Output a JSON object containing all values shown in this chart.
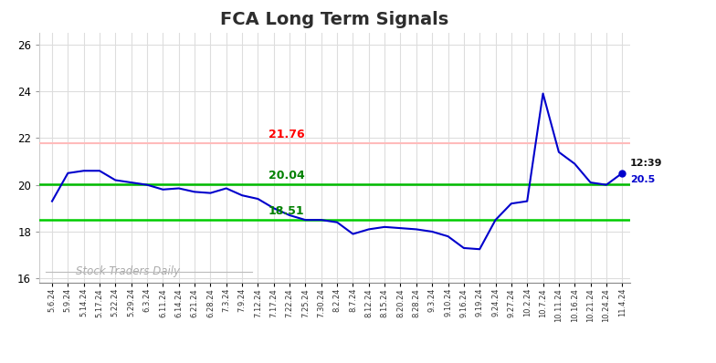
{
  "title": "FCA Long Term Signals",
  "title_fontsize": 14,
  "title_color": "#2d2d2d",
  "background_color": "#ffffff",
  "line_color": "#0000cc",
  "line_width": 1.5,
  "hline_red_value": 21.76,
  "hline_green_mid_value": 20.04,
  "hline_green_low_value": 18.51,
  "hline_red_color": "#ffbbbb",
  "hline_green_mid_color": "#00bb00",
  "hline_green_low_color": "#00cc00",
  "hline_red_label": "21.76",
  "hline_green_mid_label": "20.04",
  "hline_green_low_label": "18.51",
  "annotation_time": "12:39",
  "annotation_value": "20.5",
  "annotation_time_color": "#111111",
  "annotation_value_color": "#0000cc",
  "watermark_text": "Stock Traders Daily",
  "watermark_color": "#aaaaaa",
  "ylim": [
    15.8,
    26.5
  ],
  "yticks": [
    16,
    18,
    20,
    22,
    24,
    26
  ],
  "grid_color": "#dddddd",
  "x_labels": [
    "5.6.24",
    "5.9.24",
    "5.14.24",
    "5.17.24",
    "5.22.24",
    "5.29.24",
    "6.3.24",
    "6.11.24",
    "6.14.24",
    "6.21.24",
    "6.28.24",
    "7.3.24",
    "7.9.24",
    "7.12.24",
    "7.17.24",
    "7.22.24",
    "7.25.24",
    "7.30.24",
    "8.2.24",
    "8.7.24",
    "8.12.24",
    "8.15.24",
    "8.20.24",
    "8.28.24",
    "9.3.24",
    "9.10.24",
    "9.16.24",
    "9.19.24",
    "9.24.24",
    "9.27.24",
    "10.2.24",
    "10.7.24",
    "10.11.24",
    "10.16.24",
    "10.21.24",
    "10.24.24",
    "11.4.24"
  ],
  "y_values": [
    19.3,
    20.5,
    20.6,
    20.6,
    20.2,
    20.1,
    20.0,
    19.8,
    19.85,
    19.7,
    19.65,
    19.85,
    19.55,
    19.4,
    19.0,
    18.7,
    18.5,
    18.5,
    18.4,
    17.9,
    18.1,
    18.2,
    18.15,
    18.1,
    18.0,
    17.8,
    17.3,
    17.25,
    18.5,
    19.2,
    19.3,
    23.9,
    21.4,
    20.9,
    20.1,
    20.0,
    20.5
  ]
}
